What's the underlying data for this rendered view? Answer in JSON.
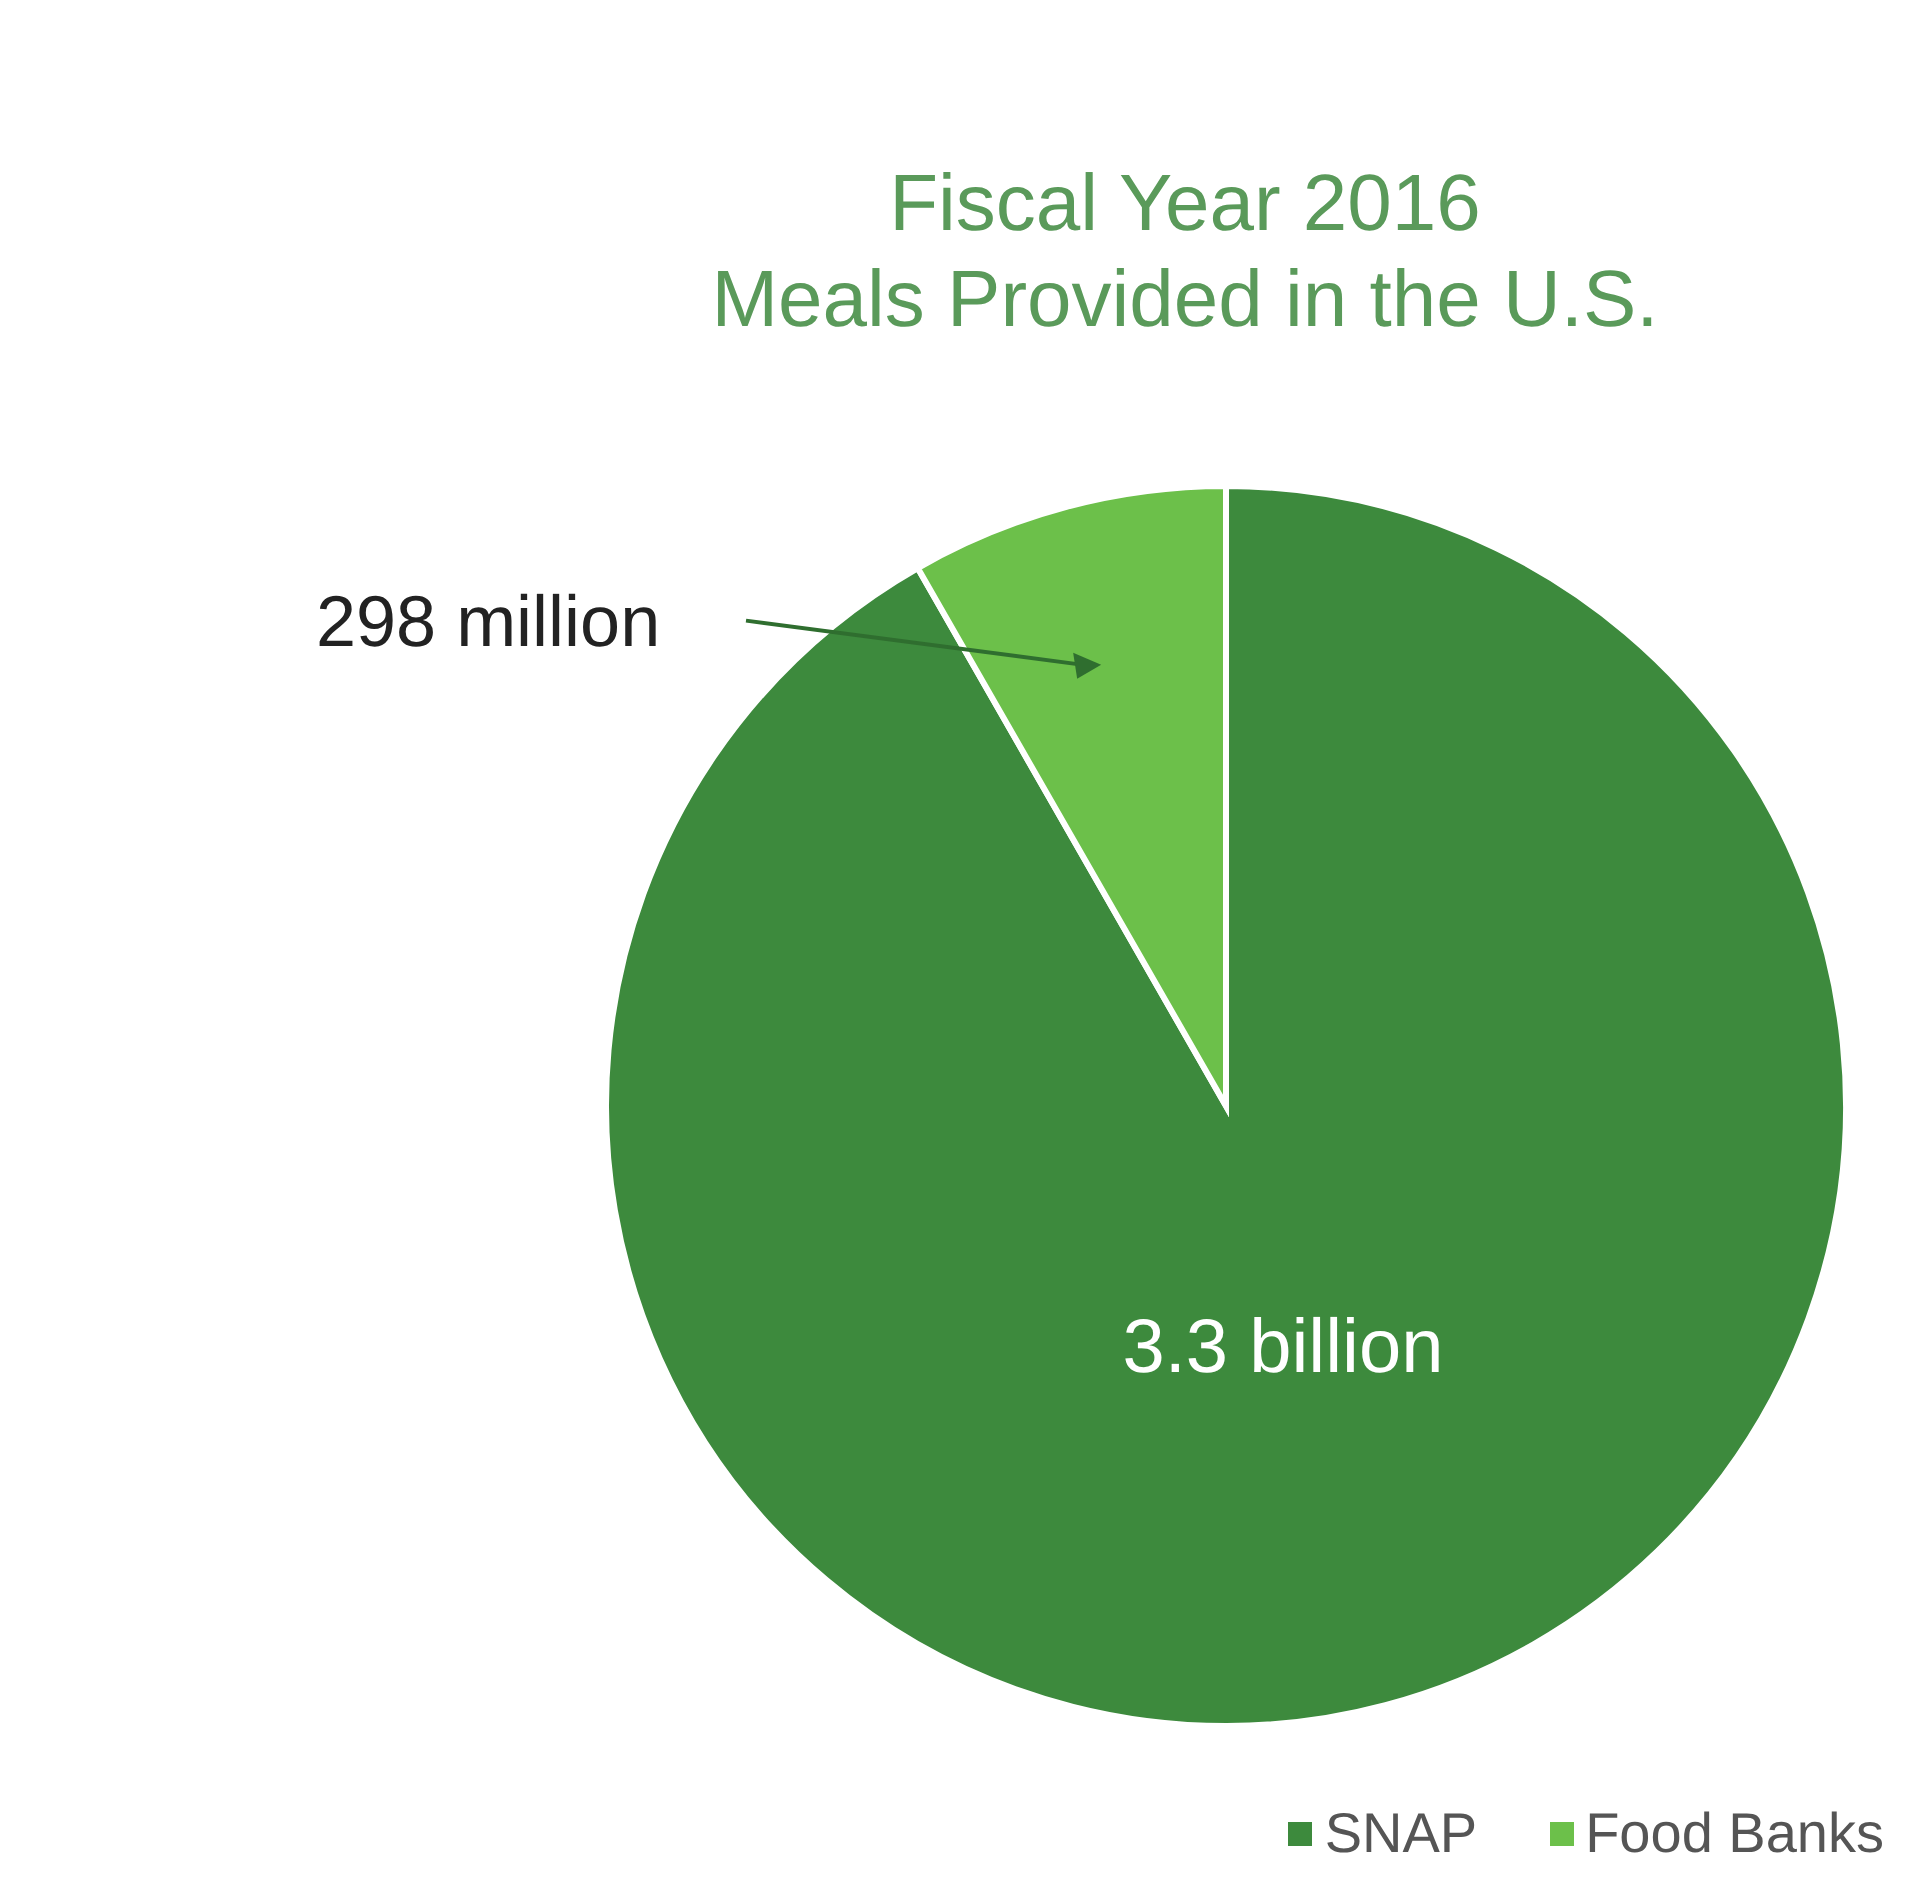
{
  "chart_data": {
    "type": "pie",
    "title": "Fiscal Year 2016\nMeals Provided in the U.S.",
    "categories": [
      "SNAP",
      "Food Banks"
    ],
    "values": [
      3300000000,
      298000000
    ],
    "value_labels": [
      "3.3 billion",
      "298 million"
    ],
    "colors": [
      "#3d8a3d",
      "#6cc04a"
    ],
    "legend": "bottom"
  }
}
